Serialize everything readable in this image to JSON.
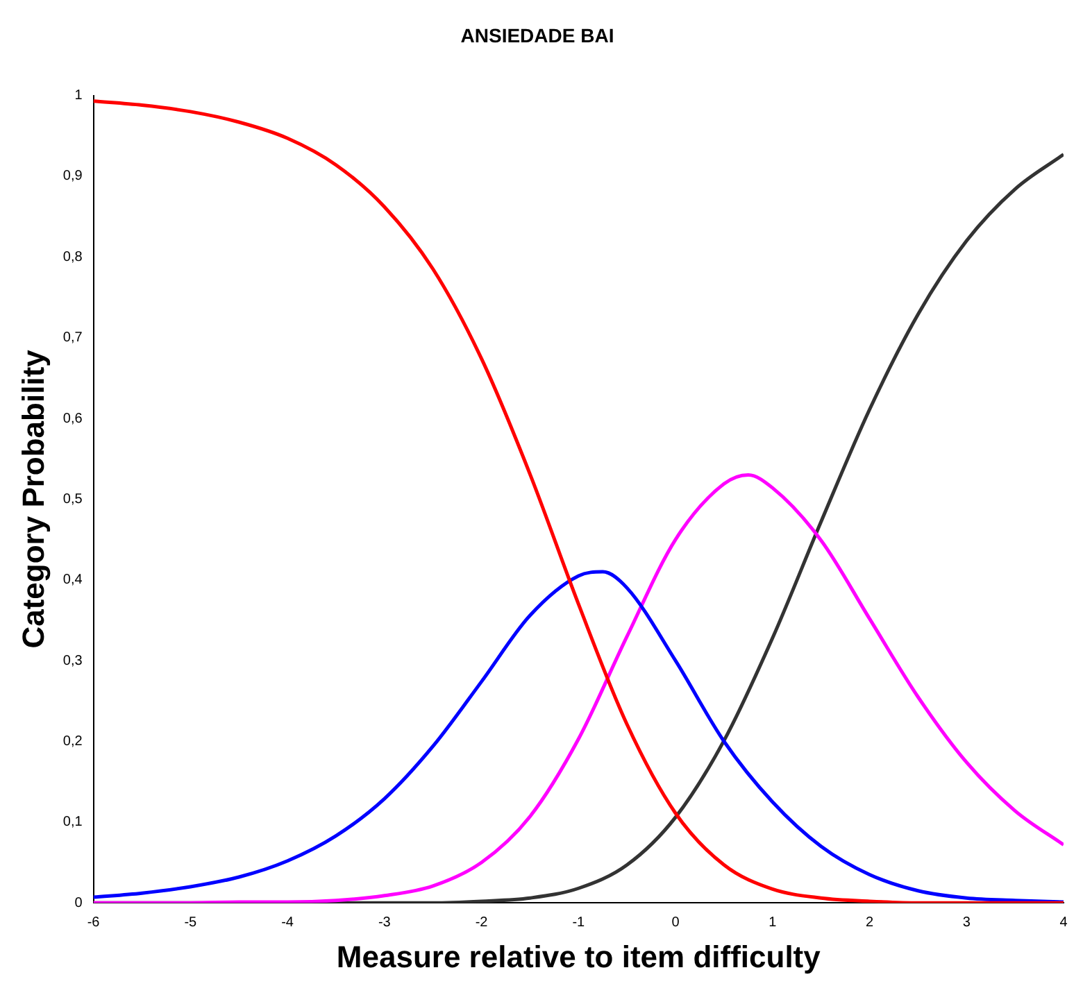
{
  "chart_data": {
    "type": "line",
    "title": "ANSIEDADE BAI",
    "xlabel": "Measure relative to item difficulty",
    "ylabel": "Category Probability",
    "x": [
      -6,
      -5.5,
      -5,
      -4.5,
      -4,
      -3.5,
      -3,
      -2.5,
      -2,
      -1.5,
      -1,
      -0.5,
      0,
      0.5,
      1,
      1.5,
      2,
      2.5,
      3,
      3.5,
      4
    ],
    "series": [
      {
        "color": "#ff0000",
        "values": [
          0.993,
          0.988,
          0.98,
          0.967,
          0.947,
          0.914,
          0.862,
          0.785,
          0.674,
          0.531,
          0.37,
          0.221,
          0.111,
          0.047,
          0.017,
          0.006,
          0.002,
          0,
          0,
          0,
          0
        ]
      },
      {
        "color": "#0000ff",
        "x": [
          -6,
          -5.5,
          -5,
          -4.5,
          -4,
          -3.5,
          -3,
          -2.5,
          -2,
          -1.5,
          -1,
          -0.75,
          -0.5,
          0,
          0.5,
          1,
          1.5,
          2,
          2.5,
          3,
          3.5,
          4
        ],
        "values": [
          0.007,
          0.012,
          0.02,
          0.032,
          0.052,
          0.083,
          0.129,
          0.194,
          0.274,
          0.356,
          0.405,
          0.41,
          0.39,
          0.3,
          0.2,
          0.125,
          0.07,
          0.035,
          0.015,
          0.006,
          0.003,
          0.001
        ]
      },
      {
        "color": "#ff00ff",
        "x": [
          -6,
          -5.5,
          -5,
          -4.5,
          -4,
          -3.5,
          -3,
          -2.5,
          -2,
          -1.5,
          -1,
          -0.5,
          0,
          0.5,
          0.75,
          1,
          1.5,
          2,
          2.5,
          3,
          3.5,
          4
        ],
        "values": [
          0,
          0,
          0,
          0.001,
          0.001,
          0.003,
          0.009,
          0.021,
          0.05,
          0.107,
          0.203,
          0.33,
          0.45,
          0.519,
          0.53,
          0.514,
          0.449,
          0.352,
          0.255,
          0.174,
          0.114,
          0.072
        ]
      },
      {
        "color": "#333333",
        "values": [
          0,
          0,
          0,
          0,
          0,
          0,
          0,
          0,
          0.002,
          0.006,
          0.018,
          0.047,
          0.106,
          0.201,
          0.328,
          0.472,
          0.611,
          0.729,
          0.82,
          0.884,
          0.927
        ]
      }
    ],
    "xlim": [
      -6,
      4
    ],
    "xticks": [
      -6,
      -5,
      -4,
      -3,
      -2,
      -1,
      0,
      1,
      2,
      3,
      4
    ],
    "ylim": [
      0,
      1
    ],
    "yticks": [
      0,
      {
        "value": 0.1,
        "label": "0,1"
      },
      {
        "value": 0.2,
        "label": "0,2"
      },
      {
        "value": 0.3,
        "label": "0,3"
      },
      {
        "value": 0.4,
        "label": "0,4"
      },
      {
        "value": 0.5,
        "label": "0,5"
      },
      {
        "value": 0.6,
        "label": "0,6"
      },
      {
        "value": 0.7,
        "label": "0,7"
      },
      {
        "value": 0.8,
        "label": "0,8"
      },
      {
        "value": 0.9,
        "label": "0,9"
      },
      1
    ],
    "grid": false,
    "legend": false,
    "marker": "none",
    "line_style": "solid"
  }
}
